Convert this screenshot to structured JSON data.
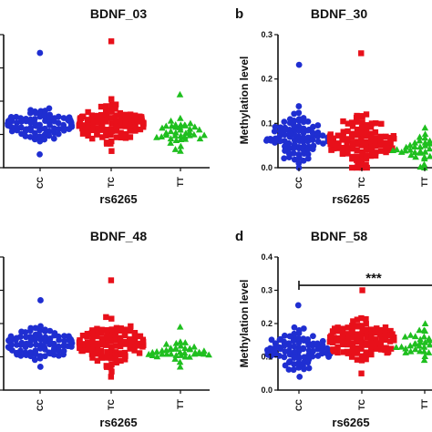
{
  "chart_data": [
    {
      "panel_letter": "",
      "title": "BDNF_03",
      "type": "scatter",
      "xlabel": "rs6265",
      "ylabel": "",
      "categories": [
        "CC",
        "TC",
        "TT"
      ],
      "yticks": [
        "",
        "",
        "",
        "",
        ""
      ],
      "ylim": [
        0,
        0.4
      ],
      "colors": [
        "#1f2ed1",
        "#e8101a",
        "#1fbf1f"
      ],
      "markers": [
        "circle",
        "square",
        "triangle"
      ],
      "groups": [
        {
          "name": "CC",
          "n": 90,
          "median": 0.13,
          "spread": 0.03,
          "min": 0.04,
          "max": 0.345
        },
        {
          "name": "TC",
          "n": 110,
          "median": 0.13,
          "spread": 0.035,
          "min": 0.05,
          "max": 0.38
        },
        {
          "name": "TT",
          "n": 40,
          "median": 0.105,
          "spread": 0.025,
          "min": 0.05,
          "max": 0.22
        }
      ],
      "significance": ""
    },
    {
      "panel_letter": "b",
      "title": "BDNF_30",
      "type": "scatter",
      "xlabel": "rs6265",
      "ylabel": "Methylation level",
      "categories": [
        "CC",
        "TC",
        "TT"
      ],
      "yticks": [
        "0.0",
        "0.1",
        "0.2",
        "0.3"
      ],
      "ylim": [
        0,
        0.3
      ],
      "colors": [
        "#1f2ed1",
        "#e8101a",
        "#1fbf1f"
      ],
      "markers": [
        "circle",
        "square",
        "triangle"
      ],
      "groups": [
        {
          "name": "CC",
          "n": 90,
          "median": 0.065,
          "spread": 0.035,
          "min": 0.0,
          "max": 0.232
        },
        {
          "name": "TC",
          "n": 110,
          "median": 0.06,
          "spread": 0.035,
          "min": 0.0,
          "max": 0.258
        },
        {
          "name": "TT",
          "n": 40,
          "median": 0.035,
          "spread": 0.02,
          "min": 0.0,
          "max": 0.09
        }
      ],
      "significance": ""
    },
    {
      "panel_letter": "",
      "title": "BDNF_48",
      "type": "scatter",
      "xlabel": "rs6265",
      "ylabel": "",
      "categories": [
        "CC",
        "TC",
        "TT"
      ],
      "yticks": [
        "",
        "",
        "",
        "",
        ""
      ],
      "ylim": [
        0,
        0.4
      ],
      "colors": [
        "#1f2ed1",
        "#e8101a",
        "#1fbf1f"
      ],
      "markers": [
        "circle",
        "square",
        "triangle"
      ],
      "groups": [
        {
          "name": "CC",
          "n": 90,
          "median": 0.14,
          "spread": 0.03,
          "min": 0.07,
          "max": 0.27
        },
        {
          "name": "TC",
          "n": 110,
          "median": 0.14,
          "spread": 0.04,
          "min": 0.04,
          "max": 0.33
        },
        {
          "name": "TT",
          "n": 40,
          "median": 0.115,
          "spread": 0.02,
          "min": 0.07,
          "max": 0.19
        }
      ],
      "significance": ""
    },
    {
      "panel_letter": "d",
      "title": "BDNF_58",
      "type": "scatter",
      "xlabel": "rs6265",
      "ylabel": "Methylation level",
      "categories": [
        "CC",
        "TC",
        "TT"
      ],
      "yticks": [
        "0.0",
        "0.1",
        "0.2",
        "0.3",
        "0.4"
      ],
      "ylim": [
        0,
        0.4
      ],
      "colors": [
        "#1f2ed1",
        "#e8101a",
        "#1fbf1f"
      ],
      "markers": [
        "circle",
        "square",
        "triangle"
      ],
      "groups": [
        {
          "name": "CC",
          "n": 90,
          "median": 0.12,
          "spread": 0.035,
          "min": 0.04,
          "max": 0.255
        },
        {
          "name": "TC",
          "n": 110,
          "median": 0.15,
          "spread": 0.035,
          "min": 0.05,
          "max": 0.3
        },
        {
          "name": "TT",
          "n": 40,
          "median": 0.14,
          "spread": 0.025,
          "min": 0.09,
          "max": 0.2
        }
      ],
      "significance": "***"
    }
  ]
}
